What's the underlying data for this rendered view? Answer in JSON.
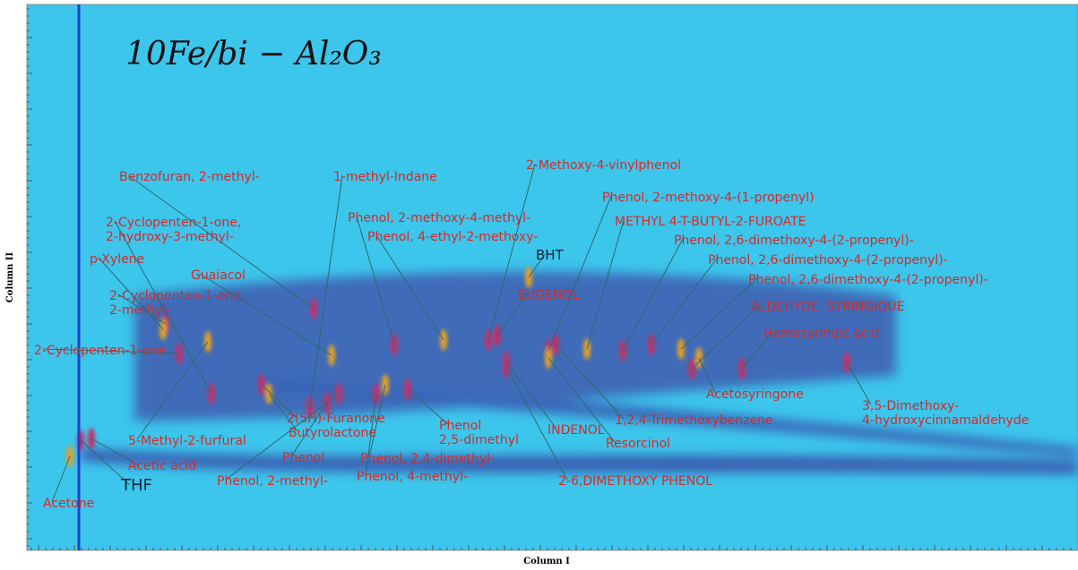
{
  "title": "10Fe/bi − Al₂O₃",
  "axes": {
    "x_label": "Column I",
    "y_label": "Column II"
  },
  "annotations": [
    [
      "Acetone"
    ],
    [
      "THF"
    ],
    [
      "Acetic acid"
    ],
    [
      "5-Methyl-2-furfural"
    ],
    [
      "2-Cyclopenten-1-one"
    ],
    [
      "2-Cyclopenten-1-one,",
      "2-methyl-"
    ],
    [
      "p-Xylene"
    ],
    [
      "2-Cyclopenten-1-one,",
      "2-hydroxy-3-methyl-"
    ],
    [
      "Benzofuran, 2-methyl-"
    ],
    [
      "Guaiacol"
    ],
    [
      "1-methyl-Indane"
    ],
    [
      "2(5H)-Furanone"
    ],
    [
      "Butyrolactone"
    ],
    [
      "Phenol"
    ],
    [
      "Phenol, 2-methyl-"
    ],
    [
      "Phenol, 2,4-dimethyl-"
    ],
    [
      "Phenol, 4-methyl-"
    ],
    [
      "Phenol, 2-methoxy-4-methyl-"
    ],
    [
      "Phenol, 4-ethyl-2-methoxy-"
    ],
    [
      "Phenol",
      "2,5-dimethyl"
    ],
    [
      "2-Methoxy-4-vinylphenol"
    ],
    [
      "BHT"
    ],
    [
      "EUGENOL"
    ],
    [
      "Phenol, 2-methoxy-4-(1-propenyl)"
    ],
    [
      "METHYL 4-T-BUTYL-2-FUROATE"
    ],
    [
      "Phenol, 2,6-dimethoxy-4-(2-propenyl)-"
    ],
    [
      "Phenol, 2,6-dimethoxy-4-(2-propenyl)-"
    ],
    [
      "Phenol, 2,6-dimethoxy-4-(2-propenyl)-"
    ],
    [
      "ALDEHYDE  SYRINGIQUE"
    ],
    [
      "Homosyringic acid"
    ],
    [
      "Acetosyringone"
    ],
    [
      "3,5-Dimethoxy-",
      "4-hydroxycinnamaldehyde"
    ],
    [
      "1,2,4-Trimethoxybenzene"
    ],
    [
      "Resorcinol"
    ],
    [
      "INDENOL"
    ],
    [
      "2-6,DIMETHOXY PHENOL"
    ]
  ]
}
